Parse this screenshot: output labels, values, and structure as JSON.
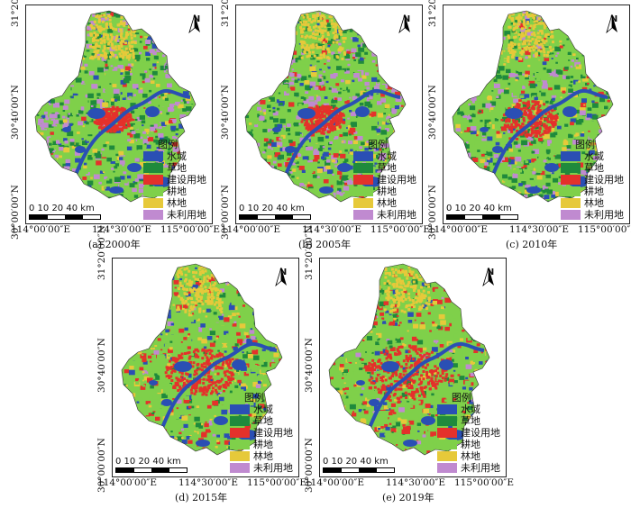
{
  "panels": [
    {
      "caption": "(a) 2000年",
      "year": "2000"
    },
    {
      "caption": "(b) 2005年",
      "year": "2005"
    },
    {
      "caption": "(c) 2010年",
      "year": "2010"
    },
    {
      "caption": "(d) 2015年",
      "year": "2015"
    },
    {
      "caption": "(e) 2019年",
      "year": "2019"
    }
  ],
  "axis": {
    "lat_top": "31°20′00″N",
    "lat_mid": "30°40′00″N",
    "lat_bottom": "30°00′00″N",
    "lon_left": "114°00′00″E",
    "lon_mid": "114°30′00″E",
    "lon_right": "115°00′00″E"
  },
  "legend": {
    "title": "图例",
    "items": [
      {
        "label": "水域",
        "color": "#2a4fb4"
      },
      {
        "label": "草地",
        "color": "#1f8a3c"
      },
      {
        "label": "建设用地",
        "color": "#e4312b"
      },
      {
        "label": "耕地",
        "color": "#7fd04a"
      },
      {
        "label": "林地",
        "color": "#e6c93a"
      },
      {
        "label": "未利用地",
        "color": "#c08ad0"
      }
    ]
  },
  "north": "N",
  "scale": {
    "labels": "0 10  20    40 km"
  }
}
